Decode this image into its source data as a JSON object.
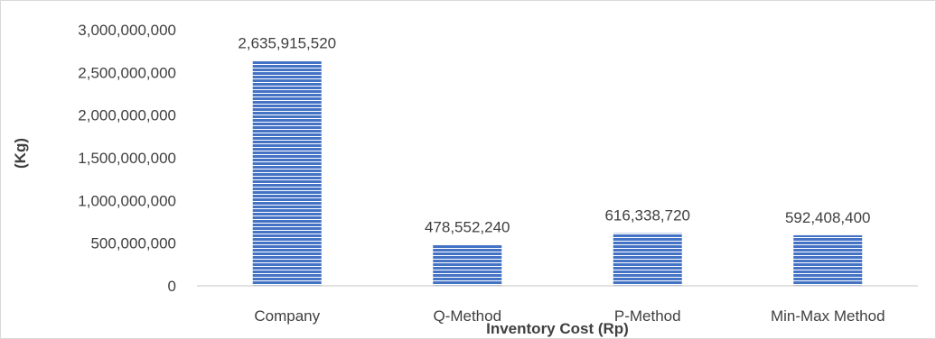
{
  "chart_data": {
    "type": "bar",
    "title": "",
    "xlabel": "Inventory Cost (Rp)",
    "ylabel": "(Kg)",
    "categories": [
      "Company",
      "Q-Method",
      "P-Method",
      "Min-Max Method"
    ],
    "values": [
      2635915520,
      478552240,
      616338720,
      592408400
    ],
    "data_labels": [
      "2,635,915,520",
      "478,552,240",
      "616,338,720",
      "592,408,400"
    ],
    "ylim": [
      0,
      3000000000
    ],
    "yticks": [
      0,
      500000000,
      1000000000,
      1500000000,
      2000000000,
      2500000000,
      3000000000
    ],
    "ytick_labels": [
      "0",
      "500,000,000",
      "1,000,000,000",
      "1,500,000,000",
      "2,000,000,000",
      "2,500,000,000",
      "3,000,000,000"
    ],
    "grid": false,
    "legend": "none",
    "bar_color": "#4472c4",
    "bar_pattern": "horizontal-lines",
    "bar_stripe_color": "#ffffff"
  }
}
